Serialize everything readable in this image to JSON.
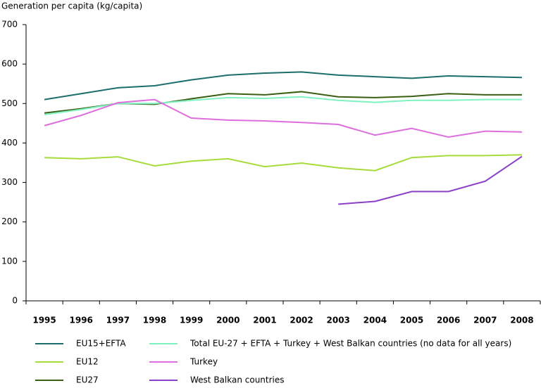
{
  "chart_data": {
    "type": "line",
    "y_label": "Generation per capita (kg/capita)",
    "categories": [
      "1995",
      "1996",
      "1997",
      "1998",
      "1999",
      "2000",
      "2001",
      "2002",
      "2003",
      "2004",
      "2005",
      "2006",
      "2007",
      "2008"
    ],
    "series": [
      {
        "name": "EU15+EFTA",
        "color": "#1b6e6c",
        "values": [
          510,
          525,
          540,
          545,
          560,
          572,
          577,
          580,
          572,
          568,
          564,
          570,
          568,
          566
        ]
      },
      {
        "name": "EU12",
        "color": "#a6dc3a",
        "values": [
          363,
          360,
          365,
          342,
          354,
          360,
          340,
          349,
          337,
          330,
          363,
          368,
          368,
          370
        ]
      },
      {
        "name": "EU27",
        "color": "#3b5e12",
        "values": [
          476,
          487,
          500,
          498,
          512,
          525,
          522,
          530,
          517,
          515,
          518,
          525,
          522,
          522
        ]
      },
      {
        "name": "Total EU-27 + EFTA + Turkey + West Balkan countries (no data for all years)",
        "color": "#7ef2c0",
        "values": [
          472,
          485,
          500,
          500,
          508,
          515,
          513,
          517,
          508,
          503,
          508,
          508,
          510,
          510
        ]
      },
      {
        "name": "Turkey",
        "color": "#de6ede",
        "values": [
          444,
          470,
          502,
          510,
          463,
          458,
          456,
          452,
          447,
          420,
          437,
          415,
          430,
          428
        ]
      },
      {
        "name": "West Balkan countries",
        "color": "#8a3fc8",
        "values": [
          null,
          null,
          null,
          null,
          null,
          null,
          null,
          null,
          245,
          252,
          277,
          277,
          303,
          366
        ]
      }
    ],
    "ylim": [
      0,
      700
    ],
    "yticks": [
      0,
      100,
      200,
      300,
      400,
      500,
      600,
      700
    ]
  }
}
